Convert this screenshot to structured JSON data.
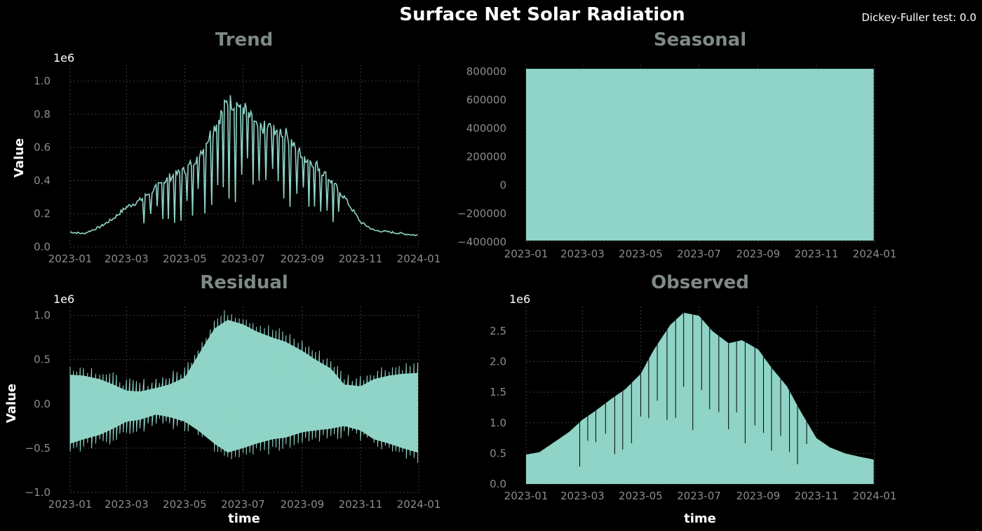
{
  "figure": {
    "title": "Surface Net Solar Radiation",
    "annotation": "Dickey-Fuller test: 0.0"
  },
  "colors": {
    "background": "#000000",
    "series": "#8fd4c6",
    "subplot_title": "#7f8a86",
    "tick": "#8c8c8c",
    "label": "#ffffff",
    "grid": "#3a3a3a"
  },
  "chart_data": [
    {
      "type": "line",
      "title": "Trend",
      "xlabel": "",
      "ylabel": "Value",
      "offset_text": "1e6",
      "x_ticks": [
        "2023-01",
        "2023-03",
        "2023-05",
        "2023-07",
        "2023-09",
        "2023-11",
        "2024-01"
      ],
      "x": [
        "2023-01-01",
        "2023-01-15",
        "2023-02-01",
        "2023-02-15",
        "2023-03-01",
        "2023-03-15",
        "2023-04-01",
        "2023-04-15",
        "2023-05-01",
        "2023-05-15",
        "2023-06-01",
        "2023-06-15",
        "2023-07-01",
        "2023-07-15",
        "2023-08-01",
        "2023-08-15",
        "2023-09-01",
        "2023-09-15",
        "2023-10-01",
        "2023-10-15",
        "2023-11-01",
        "2023-11-15",
        "2023-12-01",
        "2023-12-15",
        "2023-12-31"
      ],
      "y": [
        0.09,
        0.08,
        0.12,
        0.17,
        0.24,
        0.28,
        0.36,
        0.42,
        0.46,
        0.55,
        0.72,
        0.88,
        0.85,
        0.72,
        0.72,
        0.68,
        0.55,
        0.5,
        0.4,
        0.3,
        0.15,
        0.1,
        0.09,
        0.08,
        0.07
      ],
      "ylim": [
        0.0,
        1.1
      ],
      "y_ticks": [
        0.0,
        0.2,
        0.4,
        0.6,
        0.8,
        1.0
      ],
      "y_tick_labels": [
        "0.0",
        "0.2",
        "0.4",
        "0.6",
        "0.8",
        "1.0"
      ]
    },
    {
      "type": "area",
      "title": "Seasonal",
      "xlabel": "",
      "ylabel": "",
      "x_ticks": [
        "2023-01",
        "2023-03",
        "2023-05",
        "2023-07",
        "2023-09",
        "2023-11",
        "2024-01"
      ],
      "x_range": [
        "2023-01-01",
        "2023-12-31"
      ],
      "y_max": 820000,
      "y_min": -390000,
      "ylim": [
        -400000,
        850000
      ],
      "y_ticks": [
        -400000,
        -200000,
        0,
        200000,
        400000,
        600000,
        800000
      ],
      "y_tick_labels": [
        "−400000",
        "−200000",
        "0",
        "200000",
        "400000",
        "600000",
        "800000"
      ]
    },
    {
      "type": "area",
      "title": "Residual",
      "xlabel": "time",
      "ylabel": "Value",
      "offset_text": "1e6",
      "x_ticks": [
        "2023-01",
        "2023-03",
        "2023-05",
        "2023-07",
        "2023-09",
        "2023-11",
        "2024-01"
      ],
      "x": [
        "2023-01-01",
        "2023-01-15",
        "2023-02-01",
        "2023-02-15",
        "2023-03-01",
        "2023-03-15",
        "2023-04-01",
        "2023-04-15",
        "2023-05-01",
        "2023-05-15",
        "2023-06-01",
        "2023-06-15",
        "2023-07-01",
        "2023-07-15",
        "2023-08-01",
        "2023-08-15",
        "2023-09-01",
        "2023-09-15",
        "2023-10-01",
        "2023-10-15",
        "2023-11-01",
        "2023-11-15",
        "2023-12-01",
        "2023-12-15",
        "2023-12-31"
      ],
      "upper": [
        0.33,
        0.32,
        0.28,
        0.22,
        0.15,
        0.14,
        0.18,
        0.22,
        0.3,
        0.55,
        0.85,
        0.95,
        0.9,
        0.82,
        0.75,
        0.7,
        0.6,
        0.5,
        0.4,
        0.22,
        0.2,
        0.28,
        0.32,
        0.34,
        0.35
      ],
      "lower": [
        -0.45,
        -0.4,
        -0.35,
        -0.28,
        -0.2,
        -0.18,
        -0.12,
        -0.15,
        -0.2,
        -0.3,
        -0.45,
        -0.55,
        -0.5,
        -0.45,
        -0.4,
        -0.38,
        -0.32,
        -0.3,
        -0.28,
        -0.25,
        -0.3,
        -0.4,
        -0.45,
        -0.5,
        -0.55
      ],
      "ylim": [
        -1.0,
        1.1
      ],
      "y_ticks": [
        -1.0,
        -0.5,
        0.0,
        0.5,
        1.0
      ],
      "y_tick_labels": [
        "−1.0",
        "−0.5",
        "0.0",
        "0.5",
        "1.0"
      ]
    },
    {
      "type": "area",
      "title": "Observed",
      "xlabel": "time",
      "ylabel": "",
      "offset_text": "1e6",
      "x_ticks": [
        "2023-01",
        "2023-03",
        "2023-05",
        "2023-07",
        "2023-09",
        "2023-11",
        "2024-01"
      ],
      "x": [
        "2023-01-01",
        "2023-01-15",
        "2023-02-01",
        "2023-02-15",
        "2023-03-01",
        "2023-03-15",
        "2023-04-01",
        "2023-04-15",
        "2023-05-01",
        "2023-05-15",
        "2023-06-01",
        "2023-06-15",
        "2023-07-01",
        "2023-07-15",
        "2023-08-01",
        "2023-08-15",
        "2023-09-01",
        "2023-09-15",
        "2023-10-01",
        "2023-10-15",
        "2023-11-01",
        "2023-11-15",
        "2023-12-01",
        "2023-12-15",
        "2023-12-31"
      ],
      "upper": [
        0.48,
        0.52,
        0.7,
        0.85,
        1.05,
        1.2,
        1.4,
        1.55,
        1.8,
        2.2,
        2.6,
        2.8,
        2.75,
        2.5,
        2.3,
        2.35,
        2.2,
        1.9,
        1.6,
        1.2,
        0.75,
        0.6,
        0.5,
        0.45,
        0.4
      ],
      "ylim": [
        0.0,
        2.9
      ],
      "y_ticks": [
        0.0,
        0.5,
        1.0,
        1.5,
        2.0,
        2.5
      ],
      "y_tick_labels": [
        "0.0",
        "0.5",
        "1.0",
        "1.5",
        "2.0",
        "2.5"
      ]
    }
  ]
}
